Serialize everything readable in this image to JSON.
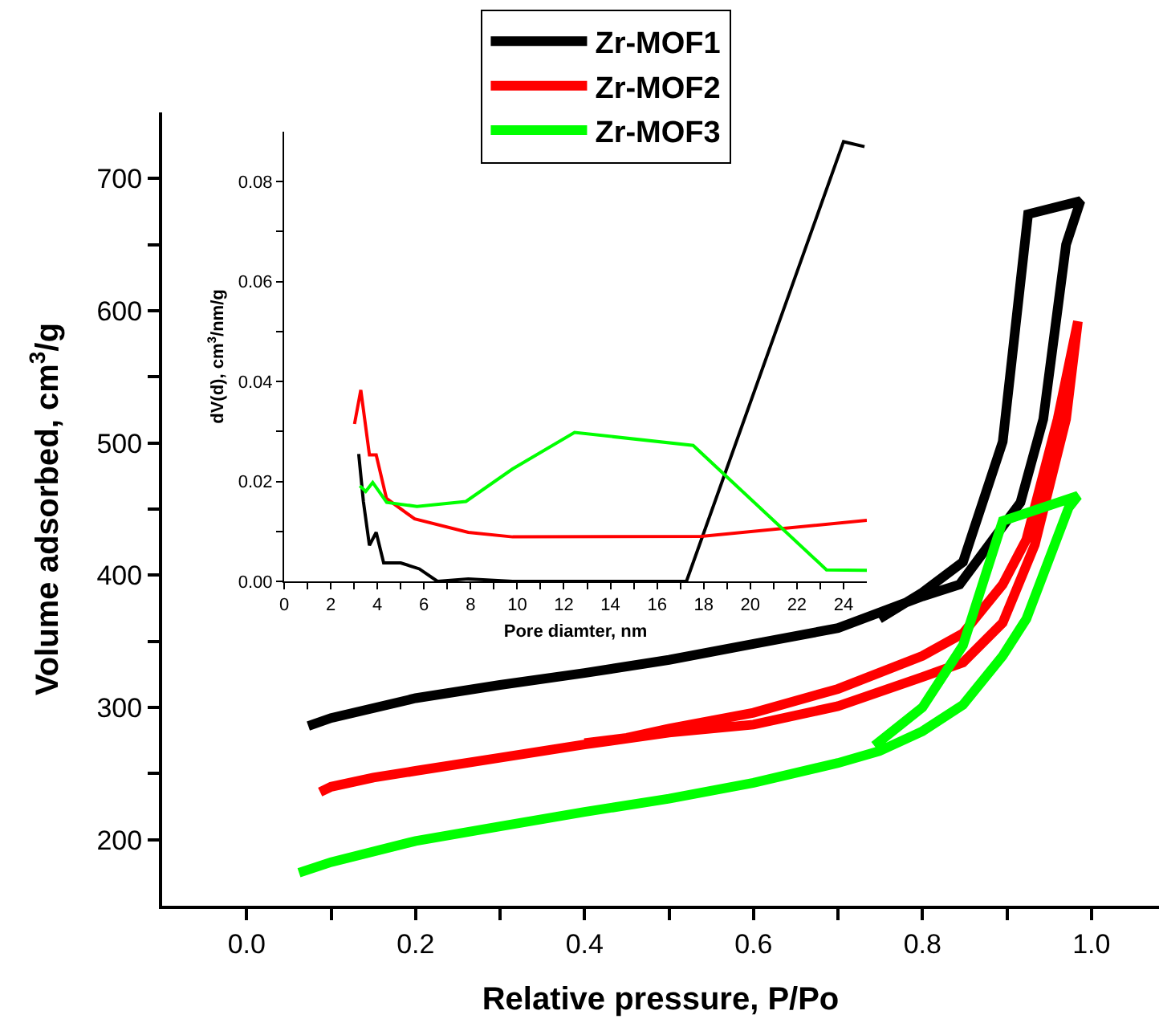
{
  "chart_data": [
    {
      "type": "line",
      "xlabel": "Relative pressure, P/Po",
      "ylabel": "Volume adsorbed, cm$^{3}$/g",
      "xlim": [
        -0.1,
        1.08
      ],
      "ylim": [
        150,
        750
      ],
      "xticks": [
        {
          "value": 0,
          "label": "0.0"
        },
        {
          "value": 0.1,
          "label": null
        },
        {
          "value": 0.2,
          "label": "0.2"
        },
        {
          "value": 0.3,
          "label": null
        },
        {
          "value": 0.4,
          "label": "0.4"
        },
        {
          "value": 0.5,
          "label": null
        },
        {
          "value": 0.6,
          "label": "0.6"
        },
        {
          "value": 0.7,
          "label": null
        },
        {
          "value": 0.8,
          "label": "0.8"
        },
        {
          "value": 0.9,
          "label": null
        },
        {
          "value": 1,
          "label": "1.0"
        }
      ],
      "yticks": [
        200,
        {
          "value": 250,
          "label": null
        },
        300,
        {
          "value": 350,
          "label": null
        },
        400,
        {
          "value": 450,
          "label": null
        },
        500,
        {
          "value": 550,
          "label": null
        },
        600,
        {
          "value": 650,
          "label": null
        },
        700
      ],
      "grid": false,
      "legend": "top",
      "marker": "none",
      "line_style": "solid",
      "series": [
        {
          "name": "Zr-MOF1",
          "color": "#000000",
          "x": [
            0.073,
            0.1,
            0.2,
            0.3,
            0.4,
            0.5,
            0.6,
            0.7,
            0.8,
            0.844,
            0.916,
            0.943,
            0.97,
            0.987,
            0.925,
            0.895,
            0.848,
            0.8,
            0.749
          ],
          "values": [
            286,
            292,
            307,
            317,
            326,
            336,
            348,
            360,
            384,
            393,
            455,
            518,
            650,
            683,
            673,
            501,
            410,
            387,
            367
          ]
        },
        {
          "name": "Zr-MOF2",
          "color": "#ff0000",
          "x": [
            0.087,
            0.1,
            0.15,
            0.2,
            0.3,
            0.4,
            0.5,
            0.6,
            0.7,
            0.8,
            0.848,
            0.895,
            0.933,
            0.97,
            0.984,
            0.96,
            0.923,
            0.895,
            0.848,
            0.8,
            0.7,
            0.6,
            0.5,
            0.45,
            0.4
          ],
          "values": [
            236,
            240,
            247,
            252,
            262,
            272,
            281,
            287,
            301,
            323,
            334,
            364,
            423,
            518,
            592,
            518,
            427,
            393,
            356,
            339,
            314,
            296,
            284,
            277,
            273
          ]
        },
        {
          "name": "Zr-MOF3",
          "color": "#00ff00",
          "x": [
            0.062,
            0.1,
            0.2,
            0.3,
            0.4,
            0.5,
            0.6,
            0.7,
            0.749,
            0.8,
            0.848,
            0.895,
            0.923,
            0.973,
            0.984,
            0.895,
            0.848,
            0.8,
            0.743
          ],
          "values": [
            175,
            183,
            199,
            210,
            221,
            231,
            243,
            258,
            267,
            282,
            302,
            339,
            367,
            451,
            460,
            441,
            347,
            300,
            271
          ]
        }
      ]
    },
    {
      "type": "line",
      "xlabel": "Pore diamter, nm",
      "ylabel": "dV(d), cm$^{3}$/nm/g",
      "xlim": [
        0,
        25
      ],
      "ylim": [
        0,
        0.09
      ],
      "xticks": [
        0,
        {
          "value": 1,
          "label": null
        },
        2,
        {
          "value": 3,
          "label": null
        },
        4,
        {
          "value": 5,
          "label": null
        },
        6,
        {
          "value": 7,
          "label": null
        },
        8,
        {
          "value": 9,
          "label": null
        },
        10,
        {
          "value": 11,
          "label": null
        },
        12,
        {
          "value": 13,
          "label": null
        },
        14,
        {
          "value": 15,
          "label": null
        },
        16,
        {
          "value": 17,
          "label": null
        },
        18,
        {
          "value": 19,
          "label": null
        },
        20,
        {
          "value": 21,
          "label": null
        },
        22,
        {
          "value": 23,
          "label": null
        },
        24
      ],
      "yticks": [
        {
          "value": 0,
          "label": "0.00"
        },
        {
          "value": 0.01,
          "label": null
        },
        {
          "value": 0.02,
          "label": "0.02"
        },
        {
          "value": 0.03,
          "label": null
        },
        {
          "value": 0.04,
          "label": "0.04"
        },
        {
          "value": 0.05,
          "label": null
        },
        {
          "value": 0.06,
          "label": "0.06"
        },
        {
          "value": 0.07,
          "label": null
        },
        {
          "value": 0.08,
          "label": "0.08"
        }
      ],
      "grid": false,
      "legend": false,
      "marker": "none",
      "line_style": "solid",
      "series": [
        {
          "color": "#000000",
          "x": [
            3.2,
            3.4,
            3.66,
            3.95,
            4.27,
            5,
            5.8,
            6.58,
            7.9,
            9.8,
            17.26,
            24,
            24.9
          ],
          "values": [
            0.0255,
            0.016,
            0.0072,
            0.0098,
            0.0037,
            0.0037,
            0.0025,
            0,
            0.0005,
            0,
            0,
            0.088,
            0.087
          ]
        },
        {
          "color": "#ff0000",
          "x": [
            3.02,
            3.29,
            3.66,
            3.95,
            4.39,
            5.6,
            7.9,
            9.8,
            17.9,
            25
          ],
          "values": [
            0.0315,
            0.0383,
            0.0253,
            0.0253,
            0.0166,
            0.0125,
            0.0098,
            0.0089,
            0.009,
            0.0122
          ]
        },
        {
          "color": "#00ff00",
          "x": [
            3.25,
            3.5,
            3.8,
            4.4,
            5.7,
            7.8,
            9.8,
            12.46,
            17.55,
            23.27,
            25
          ],
          "values": [
            0.0191,
            0.018,
            0.0198,
            0.0158,
            0.015,
            0.016,
            0.0225,
            0.0298,
            0.0272,
            0.0023,
            0.0022
          ]
        }
      ]
    }
  ]
}
